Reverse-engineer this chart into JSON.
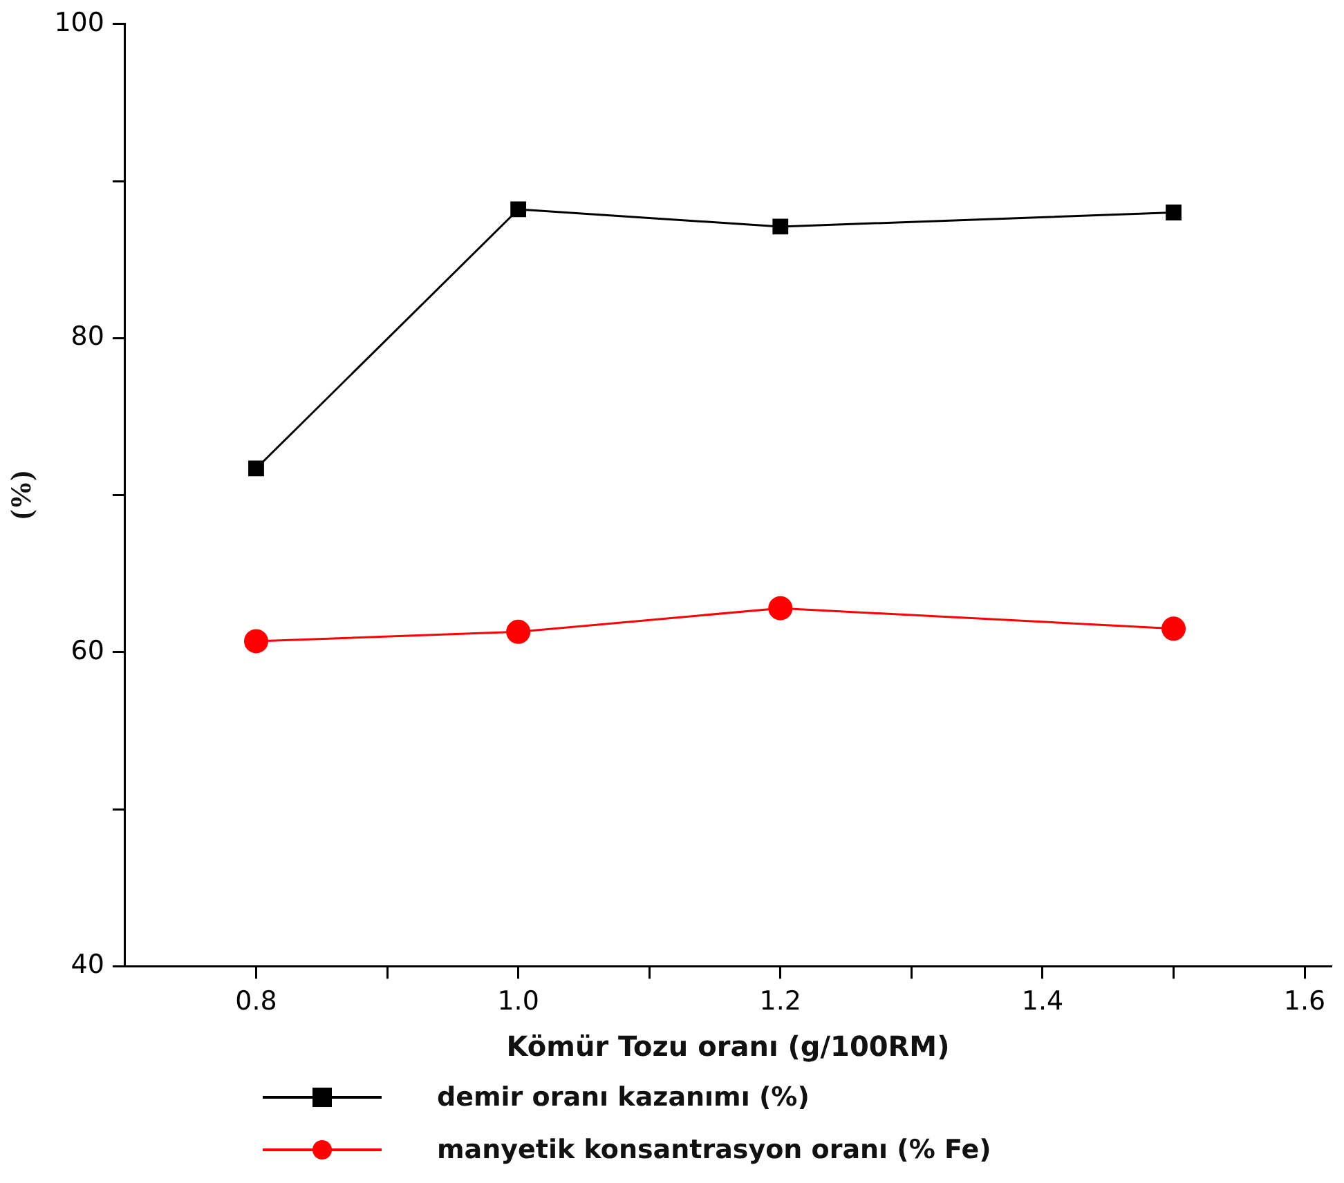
{
  "chart_data": {
    "type": "line",
    "xlabel": "Kömür Tozu oranı (g/100RM)",
    "ylabel": "(%)",
    "x": [
      0.8,
      1.0,
      1.2,
      1.5
    ],
    "series": [
      {
        "name": "demir oranı kazanımı (%)",
        "color": "#000000",
        "values": [
          71.7,
          88.2,
          87.1,
          88.0
        ],
        "marker": "square"
      },
      {
        "name": "manyetik konsantrasyon oranı (% Fe)",
        "color": "#ff0000",
        "values": [
          60.7,
          61.3,
          62.8,
          61.5
        ],
        "marker": "circle"
      }
    ],
    "xlim": [
      0.7,
      1.62
    ],
    "xticks": [
      0.8,
      {
        "value": 0.9,
        "label": null
      },
      {
        "value": 1,
        "label": "1.0"
      },
      {
        "value": 1.1,
        "label": null
      },
      1.2,
      {
        "value": 1.3,
        "label": null
      },
      1.4,
      {
        "value": 1.5,
        "label": null
      },
      1.6
    ],
    "ylim": [
      40,
      100
    ],
    "yticks": [
      40,
      {
        "value": 50,
        "label": null
      },
      60,
      {
        "value": 70,
        "label": null
      },
      80,
      {
        "value": 90,
        "label": null
      },
      100
    ],
    "grid": false,
    "legend": "bottom",
    "line_style": "solid"
  }
}
